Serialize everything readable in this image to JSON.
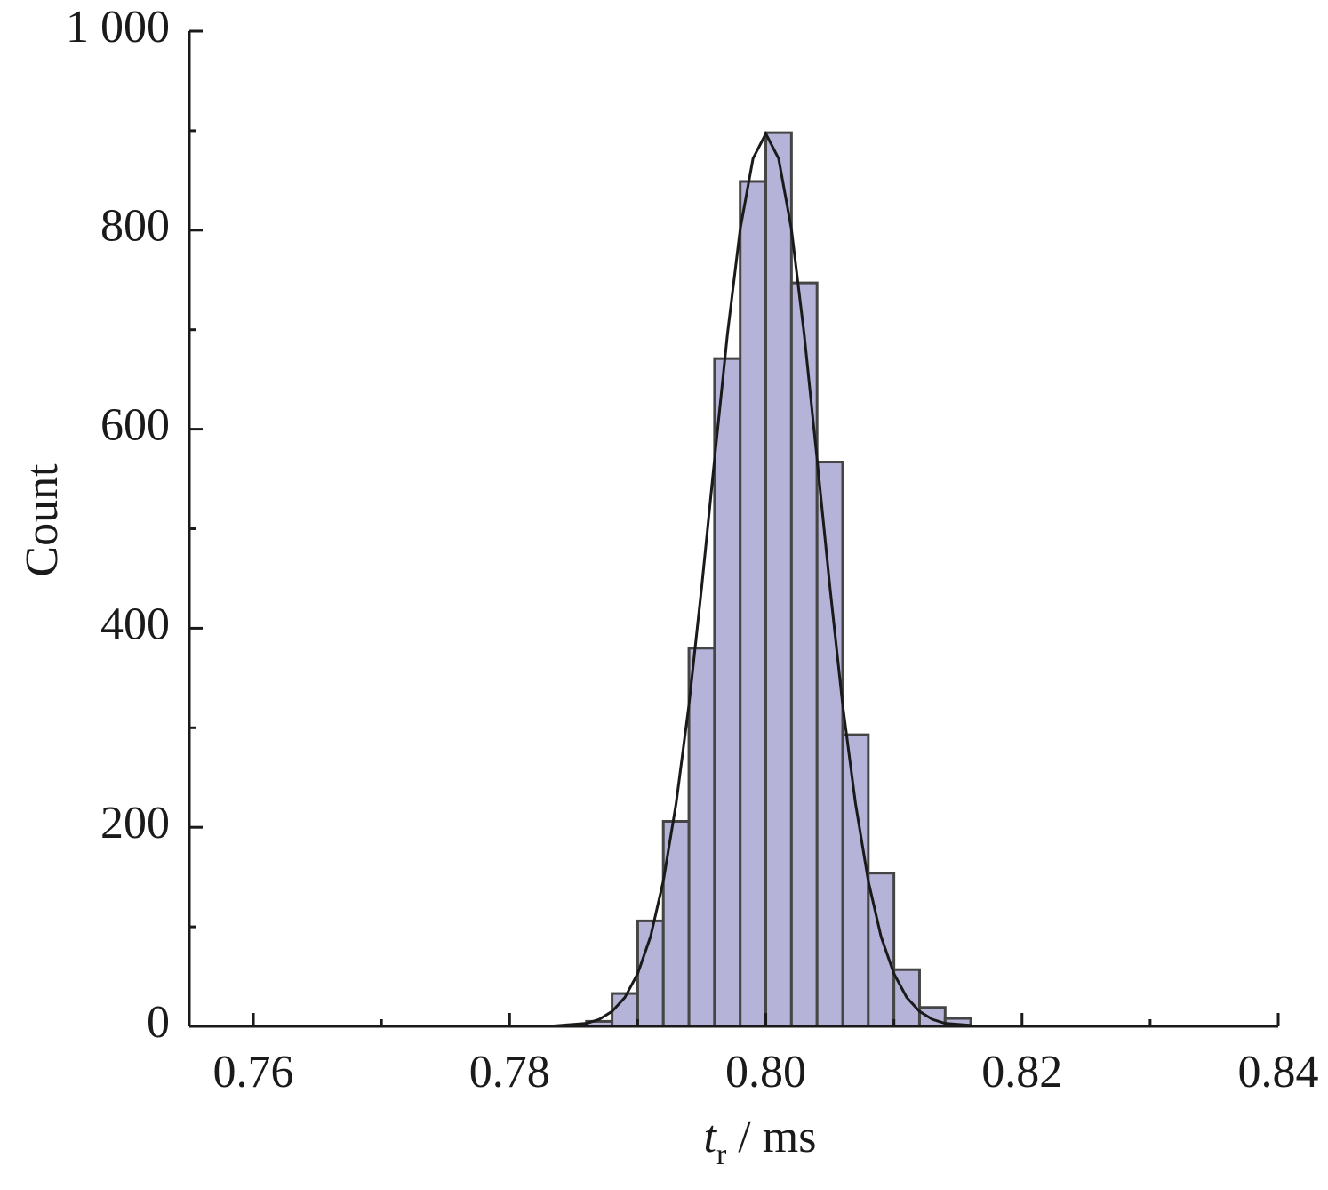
{
  "chart_data": {
    "type": "histogram",
    "ylabel": "Count",
    "xlabel": {
      "var": "t",
      "sub": "r",
      "unit": " / ms"
    },
    "bins": [
      0.786,
      0.788,
      0.79,
      0.792,
      0.794,
      0.796,
      0.798,
      0.8,
      0.802,
      0.804,
      0.806,
      0.808,
      0.81,
      0.812,
      0.814,
      0.816
    ],
    "values": [
      5,
      33,
      106,
      206,
      380,
      671,
      849,
      898,
      747,
      567,
      293,
      154,
      57,
      19,
      8
    ],
    "color": "#b5b4d8",
    "edge_color": "#454545",
    "curve": {
      "x": [
        0.782,
        0.783,
        0.784,
        0.785,
        0.786,
        0.787,
        0.788,
        0.789,
        0.79,
        0.791,
        0.792,
        0.793,
        0.794,
        0.795,
        0.796,
        0.797,
        0.798,
        0.799,
        0.8,
        0.801,
        0.802,
        0.803,
        0.804,
        0.805,
        0.806,
        0.807,
        0.808,
        0.809,
        0.81,
        0.811,
        0.812,
        0.813,
        0.814,
        0.815,
        0.816
      ],
      "values": [
        0,
        0,
        1,
        2,
        3,
        7,
        15,
        29,
        53,
        90,
        146,
        224,
        323,
        442,
        570,
        695,
        801,
        872,
        897,
        872,
        801,
        695,
        570,
        442,
        323,
        224,
        146,
        90,
        53,
        29,
        15,
        7,
        3,
        2,
        1
      ],
      "color": "#1a1a1a"
    },
    "xlim": [
      0.755,
      0.84
    ],
    "xticks": [
      {
        "value": 0.76,
        "label": "0.76"
      },
      {
        "value": 0.78,
        "label": "0.78"
      },
      {
        "value": 0.8,
        "label": "0.80"
      },
      {
        "value": 0.82,
        "label": "0.82"
      },
      {
        "value": 0.84,
        "label": "0.84"
      }
    ],
    "xminorticks": [
      0.77,
      0.79,
      0.81,
      0.83
    ],
    "ylim": [
      0,
      1000
    ],
    "yticks": [
      0,
      200,
      400,
      600,
      800,
      {
        "value": 1000,
        "label": "1 000"
      }
    ],
    "yminorticks": [
      100,
      300,
      500,
      700,
      900
    ]
  }
}
